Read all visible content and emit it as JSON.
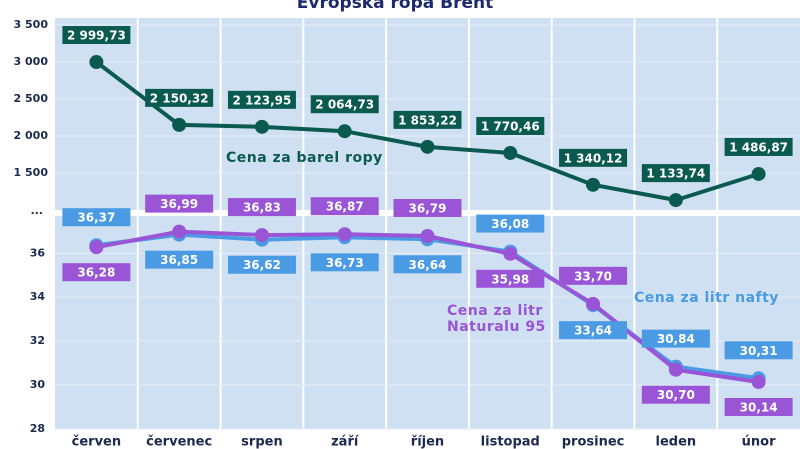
{
  "chart_data": {
    "type": "line",
    "title": "Evropská ropa Brent",
    "categories": [
      "červen",
      "červenec",
      "srpen",
      "září",
      "říjen",
      "listopad",
      "prosinec",
      "leden",
      "únor"
    ],
    "series": [
      {
        "name": "Cena za barel ropy",
        "color": "#0b5a4f",
        "axis": "y2",
        "values": [
          2999.73,
          2150.32,
          2123.95,
          2064.73,
          1853.22,
          1770.46,
          1340.12,
          1133.74,
          1486.87
        ],
        "value_labels": [
          "2 999,73",
          "2 150,32",
          "2 123,95",
          "2 064,73",
          "1 853,22",
          "1 770,46",
          "1 340,12",
          "1 133,74",
          "1 486,87"
        ]
      },
      {
        "name": "Cena za litr nafty",
        "color": "#4a9be3",
        "values": [
          36.37,
          36.85,
          36.62,
          36.73,
          36.64,
          36.08,
          33.64,
          30.84,
          30.31
        ],
        "value_labels": [
          "36,37",
          "36,85",
          "36,62",
          "36,73",
          "36,64",
          "36,08",
          "33,64",
          "30,84",
          "30,31"
        ]
      },
      {
        "name": "Cena za litr Naturalu 95",
        "color": "#9a55d6",
        "values": [
          36.28,
          36.99,
          36.83,
          36.87,
          36.79,
          35.98,
          33.7,
          30.7,
          30.14
        ],
        "value_labels": [
          "36,28",
          "36,99",
          "36,83",
          "36,87",
          "36,79",
          "35,98",
          "33,70",
          "30,70",
          "30,14"
        ]
      }
    ],
    "ylim": [
      28,
      37.7
    ],
    "yticks": [
      28,
      30,
      32,
      34,
      36
    ],
    "y2lim": [
      1000,
      3500
    ],
    "y2ticks": [
      {
        "value": 1500,
        "label": "1 500"
      },
      {
        "value": 2000,
        "label": "2 000"
      },
      {
        "value": 2500,
        "label": "2 500"
      },
      {
        "value": 3000,
        "label": "3 000"
      },
      {
        "value": 3500,
        "label": "3 500"
      }
    ],
    "axis_break_label": "...",
    "grid": true
  }
}
